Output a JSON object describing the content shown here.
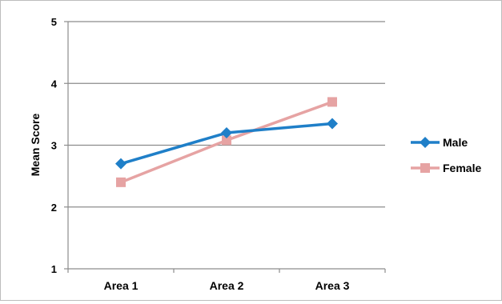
{
  "chart_data": {
    "type": "line",
    "categories": [
      "Area 1",
      "Area 2",
      "Area 3"
    ],
    "series": [
      {
        "name": "Male",
        "values": [
          2.7,
          3.2,
          3.35
        ],
        "color": "#1f7fc8",
        "marker": "diamond"
      },
      {
        "name": "Female",
        "values": [
          2.4,
          3.08,
          3.7
        ],
        "color": "#e6a3a3",
        "marker": "square"
      }
    ],
    "title": "",
    "xlabel": "",
    "ylabel": "Mean Score",
    "ylim": [
      1,
      5
    ],
    "yticks": [
      1,
      2,
      3,
      4,
      5
    ],
    "grid": true,
    "legend": "right"
  }
}
